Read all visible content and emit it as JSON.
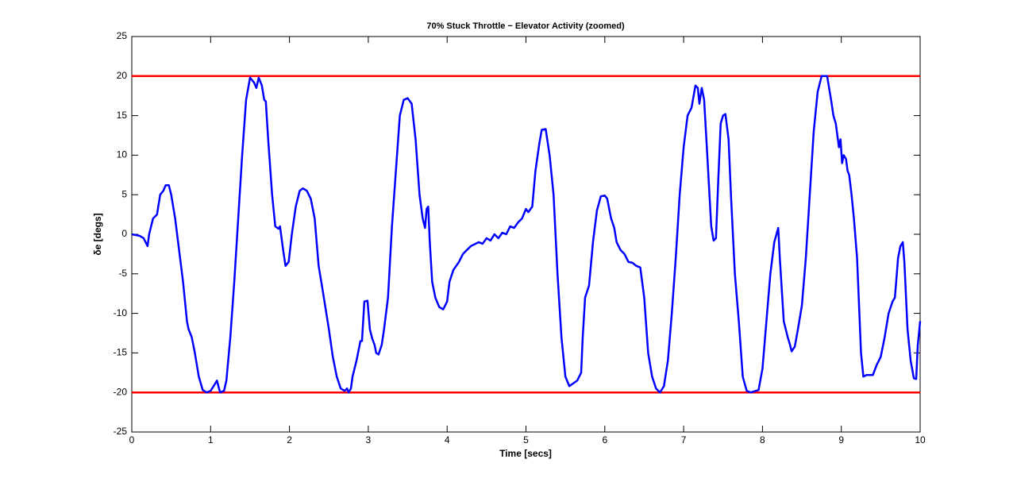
{
  "chart_data": {
    "type": "line",
    "title": "70% Stuck Throttle − Elevator Activity (zoomed)",
    "xlabel": "Time [secs]",
    "ylabel": "δe [degs]",
    "xlim": [
      0,
      10
    ],
    "xticks": [
      0,
      1,
      2,
      3,
      4,
      5,
      6,
      7,
      8,
      9,
      10
    ],
    "ylim": [
      -25,
      25
    ],
    "yticks": [
      -25,
      -20,
      -15,
      -10,
      -5,
      0,
      5,
      10,
      15,
      20,
      25
    ],
    "grid": false,
    "hlines": {
      "color": "#ff0000",
      "values": [
        20,
        -20
      ]
    },
    "x": [
      0,
      0.1,
      0.15,
      0.2,
      0.22,
      0.27,
      0.32,
      0.36,
      0.4,
      0.43,
      0.47,
      0.5,
      0.55,
      0.6,
      0.65,
      0.7,
      0.72,
      0.76,
      0.8,
      0.85,
      0.9,
      0.95,
      1.0,
      1.05,
      1.08,
      1.12,
      1.17,
      1.2,
      1.25,
      1.3,
      1.35,
      1.4,
      1.45,
      1.5,
      1.55,
      1.58,
      1.61,
      1.65,
      1.68,
      1.7,
      1.73,
      1.78,
      1.82,
      1.86,
      1.88,
      1.92,
      1.95,
      1.99,
      2.03,
      2.08,
      2.13,
      2.17,
      2.22,
      2.27,
      2.32,
      2.37,
      2.42,
      2.5,
      2.55,
      2.6,
      2.65,
      2.7,
      2.73,
      2.75,
      2.78,
      2.8,
      2.85,
      2.9,
      2.92,
      2.95,
      2.99,
      3.02,
      3.05,
      3.08,
      3.1,
      3.13,
      3.17,
      3.2,
      3.25,
      3.3,
      3.35,
      3.4,
      3.45,
      3.5,
      3.55,
      3.6,
      3.65,
      3.69,
      3.72,
      3.74,
      3.76,
      3.78,
      3.81,
      3.85,
      3.9,
      3.95,
      4.0,
      4.03,
      4.08,
      4.15,
      4.2,
      4.3,
      4.4,
      4.45,
      4.5,
      4.55,
      4.6,
      4.65,
      4.7,
      4.75,
      4.8,
      4.85,
      4.9,
      4.95,
      5.0,
      5.03,
      5.08,
      5.12,
      5.17,
      5.2,
      5.25,
      5.3,
      5.35,
      5.4,
      5.45,
      5.5,
      5.55,
      5.65,
      5.7,
      5.72,
      5.75,
      5.8,
      5.85,
      5.9,
      5.95,
      6.0,
      6.03,
      6.08,
      6.12,
      6.15,
      6.2,
      6.25,
      6.3,
      6.35,
      6.4,
      6.45,
      6.5,
      6.55,
      6.6,
      6.65,
      6.7,
      6.75,
      6.8,
      6.85,
      6.9,
      6.95,
      7.0,
      7.05,
      7.1,
      7.15,
      7.18,
      7.2,
      7.23,
      7.26,
      7.3,
      7.35,
      7.38,
      7.41,
      7.44,
      7.47,
      7.5,
      7.53,
      7.57,
      7.6,
      7.65,
      7.7,
      7.75,
      7.8,
      7.85,
      7.95,
      8.0,
      8.05,
      8.1,
      8.15,
      8.2,
      8.22,
      8.27,
      8.32,
      8.35,
      8.37,
      8.41,
      8.45,
      8.5,
      8.55,
      8.6,
      8.65,
      8.7,
      8.75,
      8.82,
      8.87,
      8.9,
      8.93,
      8.97,
      8.99,
      9.01,
      9.03,
      9.06,
      9.08,
      9.1,
      9.13,
      9.16,
      9.2,
      9.25,
      9.28,
      9.32,
      9.4,
      9.45,
      9.5,
      9.55,
      9.6,
      9.65,
      9.68,
      9.72,
      9.75,
      9.78,
      9.8,
      9.84,
      9.88,
      9.92,
      9.95,
      9.97,
      10
    ],
    "series": [
      {
        "color": "#0000ff",
        "values": [
          0,
          -0.2,
          -0.5,
          -1.5,
          0,
          2,
          2.5,
          5,
          5.5,
          6.2,
          6.2,
          5,
          2,
          -2,
          -6,
          -11,
          -12,
          -13,
          -15,
          -18,
          -19.7,
          -20,
          -19.8,
          -19,
          -18.5,
          -20,
          -19.8,
          -18.5,
          -13,
          -6,
          2,
          10,
          17,
          19.8,
          19.2,
          18.5,
          19.8,
          18.8,
          17,
          16.8,
          12,
          5,
          1,
          0.7,
          1,
          -2,
          -4,
          -3.5,
          0,
          3.5,
          5.5,
          5.8,
          5.5,
          4.5,
          2,
          -4,
          -7,
          -12,
          -15.5,
          -18,
          -19.5,
          -19.8,
          -19.5,
          -20,
          -19.5,
          -18,
          -16,
          -13.5,
          -13.5,
          -8.5,
          -8.4,
          -12,
          -13.2,
          -14,
          -15,
          -15.2,
          -14,
          -12,
          -8,
          1,
          8,
          15,
          17,
          17.2,
          16.5,
          12,
          5,
          2,
          0.8,
          3.2,
          3.5,
          -1,
          -6,
          -8,
          -9.2,
          -9.5,
          -8.5,
          -6,
          -4.5,
          -3.5,
          -2.5,
          -1.5,
          -1,
          -1.2,
          -0.5,
          -0.8,
          0,
          -0.5,
          0.2,
          0,
          1,
          0.8,
          1.5,
          2,
          3.2,
          2.8,
          3.5,
          8,
          11.5,
          13.2,
          13.3,
          10,
          5,
          -5,
          -13,
          -18,
          -19.2,
          -18.5,
          -17.5,
          -13,
          -8,
          -6.5,
          -1,
          3,
          4.8,
          4.9,
          4.5,
          2,
          0.8,
          -1,
          -2,
          -2.5,
          -3.5,
          -3.6,
          -4,
          -4.2,
          -8,
          -15,
          -18,
          -19.5,
          -20,
          -19.2,
          -16,
          -10,
          -3,
          5,
          11,
          15,
          16,
          18.8,
          18.5,
          16.5,
          18.5,
          17,
          10,
          1,
          -0.8,
          -0.5,
          7,
          14,
          15,
          15.2,
          12,
          5,
          -5,
          -11,
          -18,
          -19.8,
          -20,
          -19.7,
          -17,
          -11,
          -5,
          -1,
          0.8,
          -3,
          -11,
          -13,
          -14,
          -14.8,
          -14.2,
          -12,
          -9,
          -3,
          5,
          13,
          18,
          20,
          20,
          17,
          15,
          14,
          11,
          12,
          9,
          10,
          9.5,
          8,
          7.5,
          5,
          2,
          -3,
          -15,
          -18,
          -17.8,
          -17.8,
          -16.5,
          -15.5,
          -13,
          -10,
          -8.5,
          -8,
          -3,
          -1.5,
          -1,
          -3.5,
          -12,
          -16,
          -18.2,
          -18.3,
          -14,
          -11
        ]
      }
    ]
  }
}
